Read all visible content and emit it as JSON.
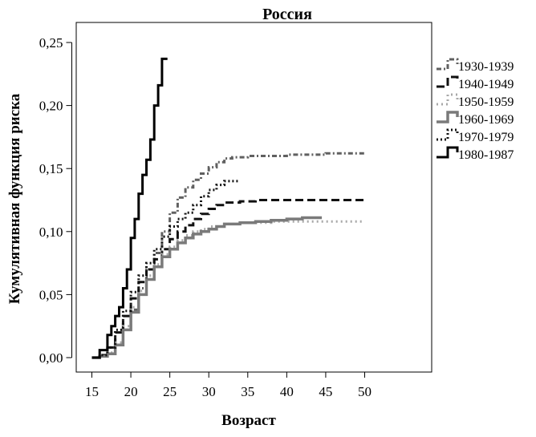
{
  "chart_data": {
    "type": "line",
    "step": true,
    "title": "Россия",
    "xlabel": "Возраст",
    "ylabel": "Кумулятивная функция риска",
    "xlim": [
      15,
      50
    ],
    "ylim": [
      0,
      0.25
    ],
    "x_ticks": [
      15,
      20,
      25,
      30,
      35,
      40,
      45,
      50
    ],
    "x_tick_labels": [
      "15",
      "20",
      "25",
      "30",
      "35",
      "40",
      "45",
      "50"
    ],
    "y_ticks": [
      0,
      0.05,
      0.1,
      0.15,
      0.2,
      0.25
    ],
    "y_tick_labels": [
      "0,00",
      "0,05",
      "0,10",
      "0,15",
      "0,20",
      "0,25"
    ],
    "grid": false,
    "legend_position": "right",
    "series": [
      {
        "name": "1930-1939",
        "color": "#606060",
        "dash": "6,3,2,3",
        "width": 3,
        "points": [
          [
            15,
            0
          ],
          [
            16,
            0.001
          ],
          [
            17,
            0.003
          ],
          [
            18,
            0.01
          ],
          [
            19,
            0.022
          ],
          [
            20,
            0.038
          ],
          [
            21,
            0.055
          ],
          [
            22,
            0.07
          ],
          [
            23,
            0.083
          ],
          [
            24,
            0.1
          ],
          [
            25,
            0.115
          ],
          [
            26,
            0.127
          ],
          [
            27,
            0.135
          ],
          [
            28,
            0.141
          ],
          [
            29,
            0.146
          ],
          [
            30,
            0.151
          ],
          [
            31,
            0.155
          ],
          [
            32,
            0.158
          ],
          [
            33,
            0.159
          ],
          [
            35,
            0.16
          ],
          [
            40,
            0.161
          ],
          [
            45,
            0.162
          ],
          [
            50,
            0.163
          ]
        ]
      },
      {
        "name": "1940-1949",
        "color": "#111111",
        "dash": "10,5",
        "width": 3,
        "points": [
          [
            15,
            0
          ],
          [
            16,
            0.002
          ],
          [
            17,
            0.008
          ],
          [
            18,
            0.02
          ],
          [
            19,
            0.033
          ],
          [
            20,
            0.047
          ],
          [
            21,
            0.06
          ],
          [
            22,
            0.07
          ],
          [
            23,
            0.078
          ],
          [
            24,
            0.086
          ],
          [
            25,
            0.094
          ],
          [
            26,
            0.1
          ],
          [
            27,
            0.105
          ],
          [
            28,
            0.11
          ],
          [
            29,
            0.114
          ],
          [
            30,
            0.118
          ],
          [
            31,
            0.121
          ],
          [
            32,
            0.123
          ],
          [
            34,
            0.124
          ],
          [
            36,
            0.125
          ],
          [
            40,
            0.125
          ],
          [
            45,
            0.125
          ],
          [
            50,
            0.125
          ]
        ]
      },
      {
        "name": "1950-1959",
        "color": "#a8a8a8",
        "dash": "2,4",
        "width": 3,
        "points": [
          [
            15,
            0
          ],
          [
            16,
            0.001
          ],
          [
            17,
            0.004
          ],
          [
            18,
            0.012
          ],
          [
            19,
            0.025
          ],
          [
            20,
            0.04
          ],
          [
            21,
            0.053
          ],
          [
            22,
            0.065
          ],
          [
            23,
            0.074
          ],
          [
            24,
            0.082
          ],
          [
            25,
            0.088
          ],
          [
            26,
            0.093
          ],
          [
            27,
            0.097
          ],
          [
            28,
            0.1
          ],
          [
            29,
            0.102
          ],
          [
            30,
            0.104
          ],
          [
            32,
            0.106
          ],
          [
            34,
            0.107
          ],
          [
            38,
            0.108
          ],
          [
            42,
            0.108
          ],
          [
            46,
            0.108
          ],
          [
            50,
            0.108
          ]
        ]
      },
      {
        "name": "1960-1969",
        "color": "#7a7a7a",
        "dash": "",
        "width": 3.5,
        "points": [
          [
            15,
            0
          ],
          [
            16,
            0.001
          ],
          [
            17,
            0.003
          ],
          [
            18,
            0.01
          ],
          [
            19,
            0.022
          ],
          [
            20,
            0.036
          ],
          [
            21,
            0.05
          ],
          [
            22,
            0.062
          ],
          [
            23,
            0.072
          ],
          [
            24,
            0.08
          ],
          [
            25,
            0.086
          ],
          [
            26,
            0.091
          ],
          [
            27,
            0.095
          ],
          [
            28,
            0.098
          ],
          [
            29,
            0.1
          ],
          [
            30,
            0.102
          ],
          [
            31,
            0.104
          ],
          [
            32,
            0.106
          ],
          [
            34,
            0.107
          ],
          [
            36,
            0.108
          ],
          [
            38,
            0.109
          ],
          [
            40,
            0.11
          ],
          [
            42,
            0.111
          ],
          [
            44.5,
            0.111
          ]
        ]
      },
      {
        "name": "1970-1979",
        "color": "#111111",
        "dash": "2,3",
        "width": 3,
        "points": [
          [
            15,
            0
          ],
          [
            16,
            0.002
          ],
          [
            17,
            0.008
          ],
          [
            18,
            0.022
          ],
          [
            19,
            0.037
          ],
          [
            20,
            0.052
          ],
          [
            21,
            0.065
          ],
          [
            22,
            0.075
          ],
          [
            23,
            0.086
          ],
          [
            24,
            0.096
          ],
          [
            25,
            0.104
          ],
          [
            26,
            0.11
          ],
          [
            27,
            0.115
          ],
          [
            28,
            0.121
          ],
          [
            29,
            0.128
          ],
          [
            30,
            0.133
          ],
          [
            31,
            0.137
          ],
          [
            32,
            0.14
          ],
          [
            34,
            0.14
          ]
        ]
      },
      {
        "name": "1980-1987",
        "color": "#000000",
        "dash": "",
        "width": 3,
        "points": [
          [
            15,
            0
          ],
          [
            16,
            0.006
          ],
          [
            17,
            0.018
          ],
          [
            17.5,
            0.025
          ],
          [
            18,
            0.033
          ],
          [
            18.5,
            0.04
          ],
          [
            19,
            0.055
          ],
          [
            19.5,
            0.07
          ],
          [
            20,
            0.095
          ],
          [
            20.5,
            0.11
          ],
          [
            21,
            0.13
          ],
          [
            21.5,
            0.145
          ],
          [
            22,
            0.157
          ],
          [
            22.5,
            0.173
          ],
          [
            23,
            0.2
          ],
          [
            23.5,
            0.216
          ],
          [
            24,
            0.237
          ],
          [
            24.7,
            0.237
          ]
        ]
      }
    ]
  }
}
